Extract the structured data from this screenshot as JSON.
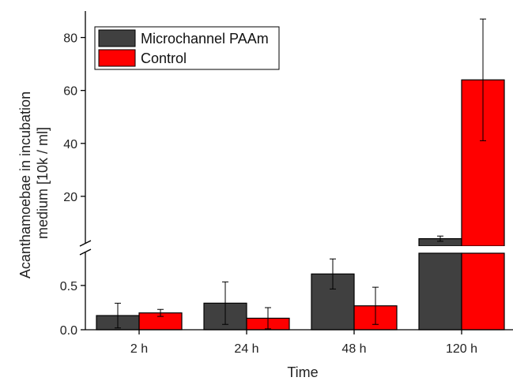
{
  "chart_data": {
    "type": "bar",
    "xlabel": "Time",
    "ylabel_lines": [
      "Acanthamoebae in incubation",
      "medium [10k / ml]"
    ],
    "categories": [
      "2 h",
      "24 h",
      "48 h",
      "120 h"
    ],
    "axis_break": true,
    "lower_ylim": [
      0,
      0.9
    ],
    "lower_ticks": [
      "0.0",
      "0.5"
    ],
    "upper_ylim": [
      0,
      90
    ],
    "upper_ticks": [
      "20",
      "40",
      "60",
      "80"
    ],
    "series": [
      {
        "name": "Microchannel PAAm",
        "color": "#404040",
        "values": [
          0.16,
          0.3,
          0.63,
          4.0
        ],
        "errors": [
          0.14,
          0.24,
          0.17,
          1.0
        ]
      },
      {
        "name": "Control",
        "color": "#ff0000",
        "values": [
          0.19,
          0.13,
          0.27,
          64.0
        ],
        "errors": [
          0.04,
          0.12,
          0.21,
          23.0
        ]
      }
    ],
    "legend": "top-left",
    "grid": false
  }
}
